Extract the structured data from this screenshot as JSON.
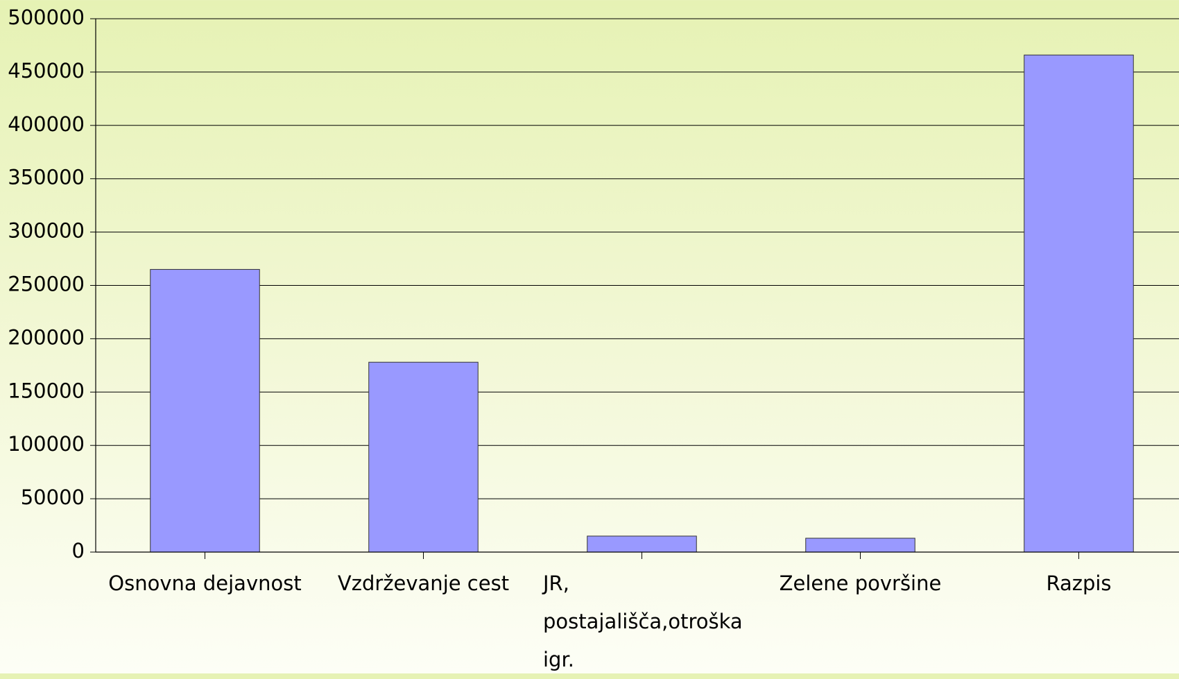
{
  "chart_data": {
    "type": "bar",
    "categories": [
      "Osnovna dejavnost",
      "Vzdrževanje cest",
      "JR, postajališča,otroška igr.",
      "Zelene površine",
      "Razpis"
    ],
    "values": [
      265000,
      178000,
      15000,
      13000,
      466000
    ],
    "color": "#9999ff",
    "ylim": [
      0,
      500000
    ],
    "yticks": [
      0,
      50000,
      100000,
      150000,
      200000,
      250000,
      300000,
      350000,
      400000,
      450000,
      500000
    ],
    "grid": true
  }
}
